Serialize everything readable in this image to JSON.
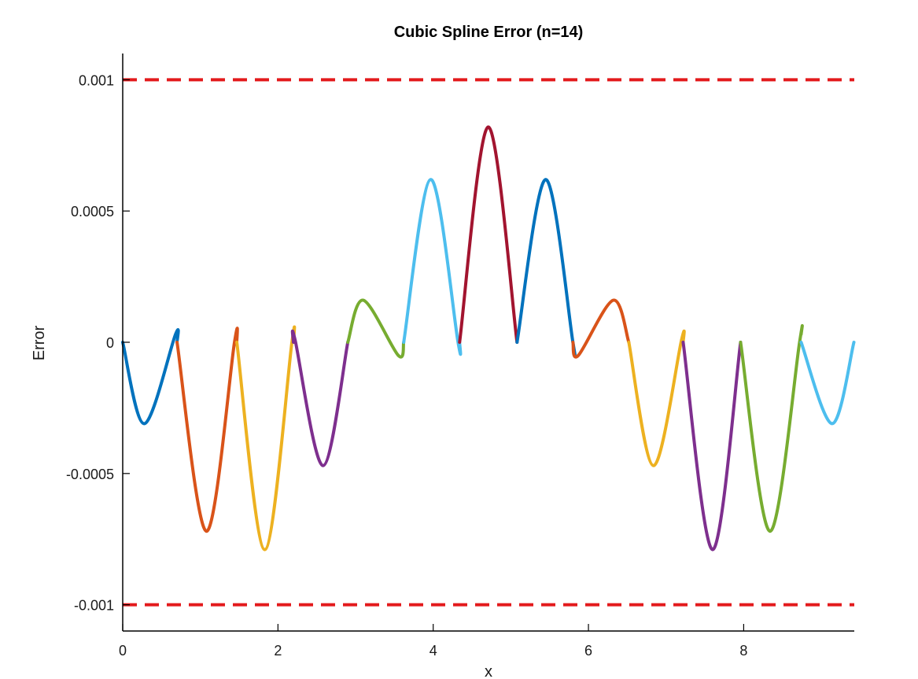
{
  "chart_data": {
    "type": "line",
    "title": "Cubic Spline Error (n=14)",
    "xlabel": "x",
    "ylabel": "Error",
    "xlim": [
      0,
      9.4248
    ],
    "ylim": [
      -0.0011,
      0.0011
    ],
    "grid": false,
    "x_ticks": [
      {
        "value": 0,
        "label": "0"
      },
      {
        "value": 2,
        "label": "2"
      },
      {
        "value": 4,
        "label": "4"
      },
      {
        "value": 6,
        "label": "6"
      },
      {
        "value": 8,
        "label": "8"
      }
    ],
    "y_ticks": [
      {
        "value": 0.001,
        "label": "0.001"
      },
      {
        "value": 0.0005,
        "label": "0.0005"
      },
      {
        "value": 0,
        "label": "0"
      },
      {
        "value": -0.0005,
        "label": "-0.0005"
      },
      {
        "value": -0.001,
        "label": "-0.001"
      }
    ],
    "reference_lines": [
      {
        "y": 0.001,
        "color": "#e31a1c",
        "style": "dashed"
      },
      {
        "y": -0.001,
        "color": "#e31a1c",
        "style": "dashed"
      }
    ],
    "series": [
      {
        "color": "#0072bd",
        "points": [
          [
            0,
            0
          ],
          [
            0.28,
            -0.00031
          ],
          [
            0.68,
            3e-05
          ],
          [
            0.7,
            0.0
          ]
        ]
      },
      {
        "color": "#d95319",
        "points": [
          [
            0.7,
            0
          ],
          [
            1.08,
            -0.00072
          ],
          [
            1.44,
            0.0
          ],
          [
            1.47,
            0.0
          ]
        ]
      },
      {
        "color": "#edb120",
        "points": [
          [
            1.47,
            0
          ],
          [
            1.83,
            -0.00079
          ],
          [
            2.18,
            0.0
          ],
          [
            2.2,
            0.0
          ]
        ]
      },
      {
        "color": "#7e2f8e",
        "points": [
          [
            2.2,
            0.0
          ],
          [
            2.22,
            1e-05
          ],
          [
            2.58,
            -0.00047
          ],
          [
            2.9,
            0.0
          ]
        ]
      },
      {
        "color": "#77ac30",
        "points": [
          [
            2.9,
            0.0
          ],
          [
            3.1,
            0.00016
          ],
          [
            3.55,
            -5e-05
          ],
          [
            3.62,
            0.0
          ]
        ]
      },
      {
        "color": "#4dbeee",
        "points": [
          [
            3.62,
            0.0
          ],
          [
            3.97,
            0.00062
          ],
          [
            4.32,
            0.0
          ],
          [
            4.34,
            0.0
          ]
        ]
      },
      {
        "color": "#a2142f",
        "points": [
          [
            4.34,
            0.0
          ],
          [
            4.71,
            0.00082
          ],
          [
            5.08,
            0.0
          ]
        ]
      },
      {
        "color": "#0072bd",
        "points": [
          [
            5.08,
            0.0
          ],
          [
            5.45,
            0.00062
          ],
          [
            5.8,
            0.0
          ],
          [
            5.8,
            0.0
          ]
        ]
      },
      {
        "color": "#d95319",
        "points": [
          [
            5.8,
            0.0
          ],
          [
            5.87,
            -5e-05
          ],
          [
            6.32,
            0.00016
          ],
          [
            6.52,
            0.0
          ]
        ]
      },
      {
        "color": "#edb120",
        "points": [
          [
            6.52,
            0.0
          ],
          [
            6.84,
            -0.00047
          ],
          [
            7.2,
            1e-05
          ],
          [
            7.22,
            0.0
          ]
        ]
      },
      {
        "color": "#7e2f8e",
        "points": [
          [
            7.22,
            0.0
          ],
          [
            7.6,
            -0.00079
          ],
          [
            7.96,
            0.0
          ]
        ]
      },
      {
        "color": "#77ac30",
        "points": [
          [
            7.96,
            0.0
          ],
          [
            8.34,
            -0.00072
          ],
          [
            8.72,
            0.0
          ],
          [
            8.74,
            3e-05
          ]
        ]
      },
      {
        "color": "#4dbeee",
        "points": [
          [
            8.74,
            0.0
          ],
          [
            9.14,
            -0.00031
          ],
          [
            9.42,
            0.0
          ]
        ]
      }
    ]
  }
}
